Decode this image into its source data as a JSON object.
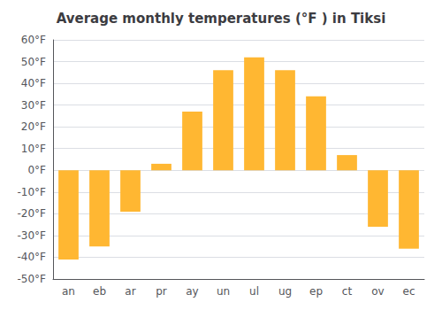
{
  "chart_data": {
    "type": "bar",
    "title": "Average monthly temperatures (°F ) in Tiksi",
    "categories": [
      "an",
      "eb",
      "ar",
      "pr",
      "ay",
      "un",
      "ul",
      "ug",
      "ep",
      "ct",
      "ov",
      "ec"
    ],
    "values": [
      -41,
      -35,
      -19,
      3,
      27,
      46,
      52,
      46,
      34,
      7,
      -26,
      -36
    ],
    "color": "#FFB732",
    "ylim": [
      -50,
      60
    ],
    "yticks": [
      {
        "value": -50,
        "label": "-50°F"
      },
      {
        "value": -40,
        "label": "-40°F"
      },
      {
        "value": -30,
        "label": "-30°F"
      },
      {
        "value": -20,
        "label": "-20°F"
      },
      {
        "value": -10,
        "label": "-10°F"
      },
      {
        "value": 0,
        "label": "0°F"
      },
      {
        "value": 10,
        "label": "10°F"
      },
      {
        "value": 20,
        "label": "20°F"
      },
      {
        "value": 30,
        "label": "30°F"
      },
      {
        "value": 40,
        "label": "40°F"
      },
      {
        "value": 50,
        "label": "50°F"
      },
      {
        "value": 60,
        "label": "60°F"
      }
    ],
    "grid": true
  }
}
